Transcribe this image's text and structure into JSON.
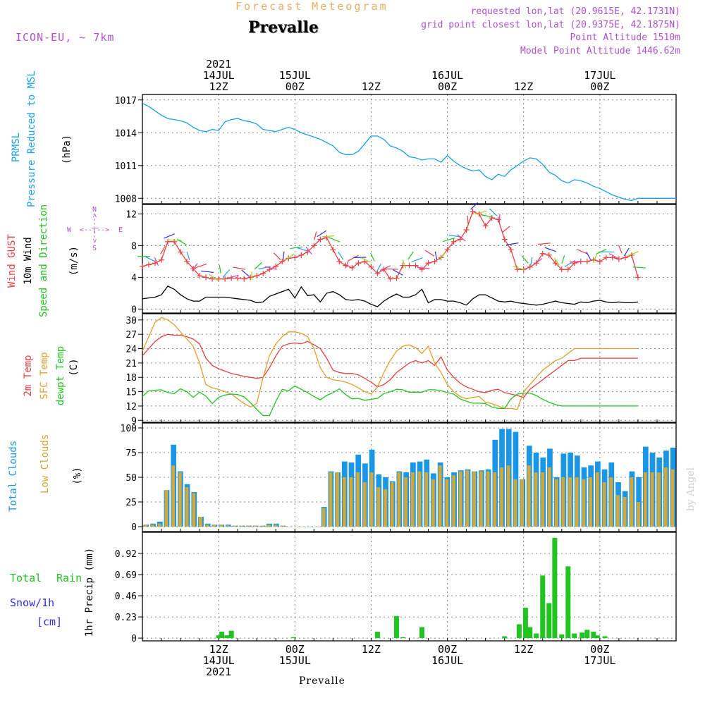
{
  "header": {
    "product": "Forecast Meteogram",
    "station": "Prevalle",
    "model": "ICON-EU, ~ 7km",
    "requested": "requested lon,lat (20.9615E, 42.1731N)",
    "grid_point": "grid point closest lon,lat (20.9375E, 42.1875N)",
    "point_alt": "Point Altitude 1510m",
    "model_alt": "Model Point Altitude 1446.62m",
    "footer_station": "Prevalle",
    "watermark": "by Angel"
  },
  "time_axis": {
    "top": [
      {
        "h": 12,
        "lines": [
          "2021",
          "14JUL",
          "12Z"
        ]
      },
      {
        "h": 24,
        "lines": [
          "15JUL",
          "00Z"
        ]
      },
      {
        "h": 36,
        "lines": [
          "12Z"
        ]
      },
      {
        "h": 48,
        "lines": [
          "16JUL",
          "00Z"
        ]
      },
      {
        "h": 60,
        "lines": [
          "12Z"
        ]
      },
      {
        "h": 72,
        "lines": [
          "17JUL",
          "00Z"
        ]
      }
    ],
    "bottom": [
      {
        "h": 12,
        "lines": [
          "12Z",
          "14JUL",
          "2021"
        ]
      },
      {
        "h": 24,
        "lines": [
          "00Z",
          "15JUL"
        ]
      },
      {
        "h": 36,
        "lines": [
          "12Z"
        ]
      },
      {
        "h": 48,
        "lines": [
          "00Z",
          "16JUL"
        ]
      },
      {
        "h": 60,
        "lines": [
          "12Z"
        ]
      },
      {
        "h": 72,
        "lines": [
          "00Z",
          "17JUL"
        ]
      }
    ]
  },
  "labels": {
    "prmsl": [
      "PRMSL",
      "Pressure Reduced to MSL",
      "(hPa)"
    ],
    "wind": [
      "Wind GUST",
      "10m Wind",
      "Speed and Direction",
      "(m/s)"
    ],
    "compass": {
      "n": "N",
      "s": "S",
      "w": "W",
      "e": "E",
      "arrows": "<--|-->"
    },
    "temp": [
      "2m Temp",
      "SFC Temp",
      "dewpt Temp",
      "(C)"
    ],
    "clouds": [
      "Total Clouds",
      "Low Clouds",
      "(%)"
    ],
    "rain": [
      "Total",
      "Rain",
      "Snow/1h",
      "[cm]",
      "1hr Precip (mm)"
    ]
  },
  "colors": {
    "pressure": "#1aa0e6",
    "gust": "#e84040",
    "wind": "#000000",
    "dewpt": "#22c422",
    "temp2m": "#e84040",
    "sfc": "#e0a030",
    "dew": "#22c422",
    "total_cloud": "#1a96e6",
    "low_cloud": "#d4a838",
    "rain": "#22c422",
    "snow": "#3030e0",
    "purple": "#b050d0",
    "orange": "#e8b060",
    "grid": "#888888"
  },
  "chart_data": [
    {
      "type": "line",
      "title": "PRMSL Pressure Reduced to MSL",
      "ylabel": "(hPa)",
      "ylim": [
        1007.5,
        1017.5
      ],
      "yticks": [
        1008,
        1011,
        1014,
        1017
      ],
      "x": [
        0,
        1,
        2,
        3,
        4,
        5,
        6,
        7,
        8,
        9,
        10,
        11,
        12,
        13,
        14,
        15,
        16,
        17,
        18,
        19,
        20,
        21,
        22,
        23,
        24,
        25,
        26,
        27,
        28,
        29,
        30,
        31,
        32,
        33,
        34,
        35,
        36,
        37,
        38,
        39,
        40,
        41,
        42,
        43,
        44,
        45,
        46,
        47,
        48,
        49,
        50,
        51,
        52,
        53,
        54,
        55,
        56,
        57,
        58,
        59,
        60,
        61,
        62,
        63,
        64,
        65,
        66,
        67,
        68,
        69,
        70,
        71,
        72,
        73,
        74,
        75,
        76,
        77,
        78,
        79,
        80,
        81,
        82,
        83,
        84
      ],
      "series": [
        {
          "name": "PRMSL",
          "values": [
            1016.7,
            1016.4,
            1016.0,
            1015.6,
            1015.3,
            1015.2,
            1015.1,
            1014.9,
            1014.5,
            1014.2,
            1014.1,
            1014.3,
            1014.2,
            1015.0,
            1015.2,
            1015.3,
            1015.1,
            1015.0,
            1014.8,
            1014.3,
            1014.2,
            1014.1,
            1014.3,
            1014.5,
            1014.3,
            1014.0,
            1013.8,
            1013.6,
            1013.4,
            1013.1,
            1012.8,
            1012.2,
            1012.0,
            1012.0,
            1012.3,
            1013.0,
            1013.7,
            1013.7,
            1013.4,
            1012.8,
            1012.6,
            1012.3,
            1011.8,
            1011.7,
            1011.5,
            1011.6,
            1011.6,
            1011.3,
            1011.9,
            1011.4,
            1011.0,
            1010.7,
            1010.5,
            1010.6,
            1010.0,
            1009.7,
            1010.2,
            1010.0,
            1010.6,
            1011.0,
            1011.4,
            1011.7,
            1011.6,
            1011.1,
            1010.4,
            1010.1,
            1009.6,
            1009.4,
            1009.7,
            1009.6,
            1009.4,
            1009.1,
            1008.9,
            1008.6,
            1008.3,
            1008.1,
            1007.9,
            1007.8,
            1008.0,
            1008.0,
            1008.0,
            1008.0,
            1008.0,
            1008.0,
            1008.0
          ]
        }
      ]
    },
    {
      "type": "line",
      "title": "Wind GUST / 10m Wind Speed and Direction",
      "ylabel": "(m/s)",
      "ylim": [
        -0.5,
        13.2
      ],
      "yticks": [
        0,
        4,
        8,
        12
      ],
      "x_gust": [
        0,
        1,
        2,
        3,
        4,
        5,
        6,
        7,
        8,
        9,
        10,
        11,
        12,
        13,
        14,
        15,
        16,
        17,
        18,
        19,
        20,
        21,
        22,
        23,
        24,
        25,
        26,
        27,
        28,
        29,
        30,
        31,
        32,
        33,
        34,
        35,
        36,
        37,
        38,
        39,
        40,
        41,
        42,
        43,
        44,
        45,
        46,
        47,
        48,
        49,
        50,
        51,
        52,
        53,
        54,
        55,
        56,
        57,
        58,
        59,
        60,
        61,
        62,
        63,
        64,
        65,
        66,
        67,
        68,
        69,
        70,
        71,
        72,
        73,
        74,
        75,
        76,
        77,
        78
      ],
      "series": [
        {
          "name": "Wind GUST",
          "values": [
            5.4,
            5.6,
            5.8,
            6.2,
            8.5,
            8.5,
            7.2,
            6.0,
            5.1,
            4.2,
            4.0,
            3.8,
            3.8,
            3.8,
            3.9,
            3.9,
            3.8,
            4.0,
            4.2,
            4.5,
            5.0,
            5.4,
            6.0,
            6.4,
            6.5,
            6.8,
            7.2,
            8.0,
            8.8,
            9.0,
            7.5,
            6.0,
            5.5,
            5.2,
            5.8,
            6.0,
            5.3,
            4.5,
            5.0,
            3.8,
            3.9,
            5.5,
            5.5,
            5.5,
            5.0,
            5.8,
            6.0,
            6.5,
            7.5,
            8.5,
            8.8,
            10.0,
            12.3,
            12.0,
            10.5,
            11.5,
            11.3,
            8.8,
            7.5,
            5.0,
            5.0,
            5.3,
            5.8,
            7.0,
            6.8,
            5.8,
            5.0,
            5.0,
            5.8,
            6.0,
            6.0,
            6.2,
            6.0,
            6.5,
            6.5,
            6.3,
            6.5,
            6.8,
            4.0
          ]
        },
        {
          "name": "10m Wind",
          "values": [
            1.3,
            1.4,
            1.5,
            1.8,
            2.9,
            2.5,
            1.8,
            1.3,
            1.0,
            1.0,
            1.5,
            1.5,
            1.5,
            1.5,
            1.4,
            1.3,
            1.2,
            1.1,
            0.8,
            0.9,
            1.6,
            1.9,
            2.2,
            2.5,
            1.4,
            2.8,
            1.7,
            1.8,
            0.9,
            2.0,
            2.2,
            1.8,
            1.2,
            1.1,
            1.2,
            1.0,
            0.6,
            0.3,
            1.0,
            1.5,
            1.9,
            1.5,
            1.5,
            1.8,
            2.5,
            0.8,
            1.2,
            1.2,
            1.0,
            1.0,
            0.8,
            0.5,
            1.3,
            1.8,
            1.8,
            1.4,
            1.0,
            0.9,
            1.0,
            0.8,
            0.7,
            0.6,
            0.5,
            0.6,
            0.8,
            1.0,
            0.8,
            0.7,
            0.6,
            0.9,
            0.8,
            1.0,
            1.1,
            0.9,
            0.8,
            0.9,
            0.8,
            0.8,
            0.9
          ]
        }
      ]
    },
    {
      "type": "line",
      "title": "2m Temp / SFC Temp / dewpt Temp",
      "ylabel": "(C)",
      "ylim": [
        8.6,
        31.3
      ],
      "yticks": [
        9,
        12,
        15,
        18,
        21,
        24,
        27,
        30
      ],
      "x": [
        0,
        1,
        2,
        3,
        4,
        5,
        6,
        7,
        8,
        9,
        10,
        11,
        12,
        13,
        14,
        15,
        16,
        17,
        18,
        19,
        20,
        21,
        22,
        23,
        24,
        25,
        26,
        27,
        28,
        29,
        30,
        31,
        32,
        33,
        34,
        35,
        36,
        37,
        38,
        39,
        40,
        41,
        42,
        43,
        44,
        45,
        46,
        47,
        48,
        49,
        50,
        51,
        52,
        53,
        54,
        55,
        56,
        57,
        58,
        59,
        60,
        61,
        62,
        63,
        64,
        65,
        66,
        67,
        68,
        69,
        70,
        71,
        72,
        73,
        74,
        75,
        76,
        77,
        78
      ],
      "series": [
        {
          "name": "2m Temp",
          "values": [
            22.5,
            24.0,
            25.5,
            26.5,
            27.0,
            26.8,
            26.8,
            26.5,
            26.0,
            25.0,
            22.0,
            20.5,
            19.8,
            19.3,
            18.8,
            18.5,
            18.2,
            18.0,
            17.8,
            18.0,
            20.0,
            22.5,
            24.5,
            25.0,
            25.2,
            25.0,
            25.5,
            24.8,
            24.0,
            22.0,
            19.5,
            19.0,
            18.8,
            18.8,
            18.5,
            17.8,
            17.0,
            16.0,
            16.5,
            17.5,
            19.0,
            20.0,
            21.0,
            21.5,
            21.0,
            21.5,
            20.5,
            22.3,
            19.5,
            18.0,
            16.8,
            16.0,
            15.5,
            15.0,
            14.8,
            15.3,
            15.5,
            14.8,
            14.5,
            14.2,
            13.8,
            15.5,
            16.5,
            17.5,
            18.5,
            19.5,
            20.5,
            21.5,
            21.5,
            22.0,
            22.0,
            22.0,
            22.0,
            22.0,
            22.0,
            22.0,
            22.0,
            22.0,
            22.0
          ]
        },
        {
          "name": "SFC Temp",
          "values": [
            23.5,
            26.5,
            29.5,
            30.5,
            30.0,
            29.0,
            27.5,
            26.0,
            24.5,
            21.0,
            16.5,
            15.8,
            15.5,
            15.0,
            14.5,
            13.5,
            12.5,
            11.8,
            12.5,
            18.0,
            22.5,
            25.0,
            26.5,
            27.5,
            27.5,
            27.2,
            26.5,
            24.0,
            20.0,
            18.0,
            17.5,
            17.3,
            17.0,
            16.5,
            15.8,
            15.0,
            14.5,
            16.0,
            19.0,
            21.5,
            23.5,
            24.5,
            24.8,
            24.2,
            23.0,
            24.5,
            21.0,
            19.0,
            16.5,
            15.0,
            14.0,
            13.5,
            13.8,
            14.0,
            12.8,
            12.5,
            12.0,
            11.5,
            11.5,
            11.3,
            15.0,
            16.5,
            18.0,
            19.5,
            20.5,
            21.5,
            22.0,
            23.0,
            24.0,
            24.0,
            24.0,
            24.0,
            24.0,
            24.0,
            24.0,
            24.0,
            24.0,
            24.0,
            24.0
          ]
        },
        {
          "name": "dewpt Temp",
          "values": [
            14.0,
            15.2,
            15.3,
            15.4,
            14.8,
            14.6,
            15.6,
            15.0,
            13.8,
            14.9,
            14.1,
            12.5,
            13.8,
            14.3,
            14.5,
            14.4,
            13.9,
            12.7,
            11.3,
            10.0,
            10.0,
            13.0,
            15.5,
            15.2,
            16.2,
            15.5,
            14.8,
            14.0,
            13.3,
            14.2,
            14.8,
            15.6,
            14.4,
            13.5,
            13.6,
            13.2,
            13.4,
            13.6,
            14.6,
            15.0,
            15.5,
            15.4,
            14.9,
            14.9,
            14.9,
            15.4,
            15.4,
            15.2,
            14.8,
            14.5,
            13.5,
            13.0,
            12.6,
            12.6,
            12.5,
            11.8,
            11.5,
            11.5,
            13.5,
            14.5,
            14.7,
            14.7,
            14.2,
            13.4,
            12.8,
            12.3,
            12.0,
            12.0,
            12.0,
            12.0,
            12.0,
            12.0,
            12.0,
            12.0,
            12.0,
            12.0,
            12.0,
            12.0,
            12.0
          ]
        }
      ]
    },
    {
      "type": "bar",
      "title": "Total Clouds / Low Clouds",
      "ylabel": "(%)",
      "ylim": [
        -5,
        105
      ],
      "yticks": [
        0,
        25,
        50,
        75,
        100
      ],
      "series": [
        {
          "name": "Total Clouds",
          "values": [
            2,
            3,
            5,
            37,
            83,
            56,
            43,
            35,
            10,
            3,
            2,
            2,
            2,
            1,
            1,
            1,
            1,
            1,
            3,
            3,
            1,
            0,
            0,
            0,
            0,
            0,
            20,
            56,
            55,
            66,
            65,
            73,
            64,
            78,
            53,
            50,
            46,
            56,
            55,
            65,
            66,
            68,
            54,
            65,
            50,
            55,
            57,
            58,
            56,
            57,
            58,
            88,
            99,
            99,
            96,
            48,
            82,
            75,
            70,
            79,
            50,
            74,
            75,
            72,
            60,
            62,
            66,
            58,
            65,
            45,
            36,
            56,
            50,
            81,
            75,
            70,
            77,
            80
          ]
        },
        {
          "name": "Low Clouds",
          "values": [
            2,
            2,
            3,
            37,
            62,
            55,
            40,
            34,
            10,
            2,
            2,
            2,
            1,
            1,
            1,
            1,
            1,
            1,
            2,
            2,
            1,
            0,
            0,
            0,
            0,
            0,
            19,
            55,
            55,
            50,
            50,
            55,
            45,
            55,
            40,
            38,
            45,
            55,
            50,
            55,
            56,
            55,
            48,
            62,
            48,
            52,
            56,
            57,
            56,
            56,
            56,
            55,
            60,
            62,
            48,
            48,
            62,
            55,
            55,
            60,
            48,
            50,
            50,
            50,
            48,
            50,
            55,
            45,
            50,
            32,
            30,
            50,
            25,
            55,
            55,
            55,
            60,
            58
          ]
        }
      ]
    },
    {
      "type": "bar",
      "title": "Total Rain / Snow/1h [cm]",
      "ylabel": "1hr Precip (mm)",
      "ylim": [
        -0.03,
        1.15
      ],
      "yticks": [
        0,
        0.23,
        0.46,
        0.69,
        0.92
      ],
      "x": [
        12.0,
        12.5,
        13.3,
        14.0,
        23.8,
        37.0,
        40.0,
        41.0,
        44.0,
        57.0,
        59.3,
        60.3,
        61.0,
        62.0,
        63.0,
        64.0,
        64.9,
        66.0,
        67.0,
        68.0,
        69.2,
        70.0,
        71.0,
        71.6,
        72.8
      ],
      "series": [
        {
          "name": "Total Rain",
          "values": [
            0.03,
            0.07,
            0.03,
            0.08,
            0.01,
            0.07,
            0.24,
            0.01,
            0.12,
            0.02,
            0.15,
            0.33,
            0.12,
            0.05,
            0.68,
            0.38,
            1.09,
            0.04,
            0.78,
            0.05,
            0.06,
            0.09,
            0.07,
            0.03,
            0.02
          ]
        }
      ]
    }
  ]
}
